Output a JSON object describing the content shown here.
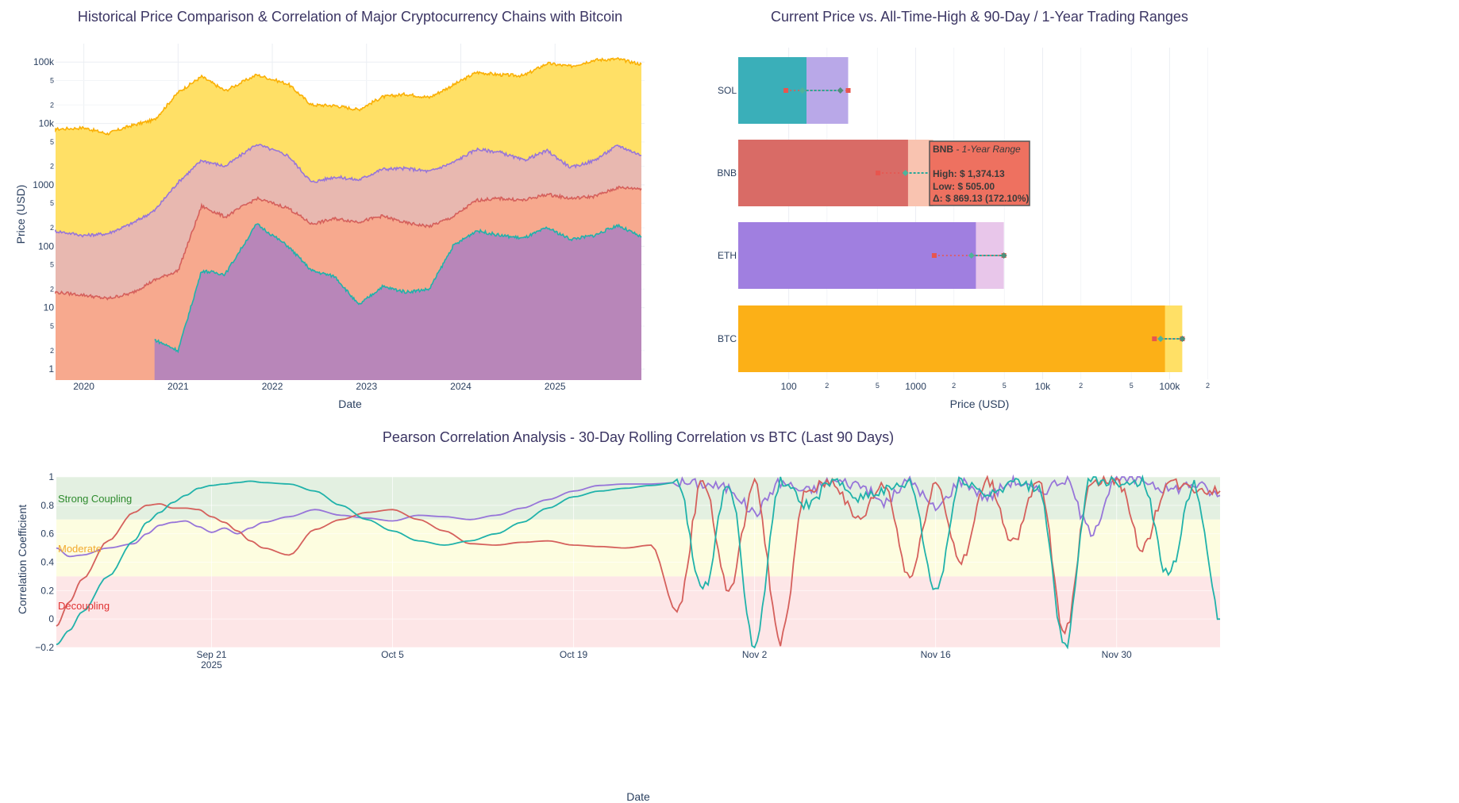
{
  "chart_data": [
    {
      "type": "area",
      "title": "Historical Price Comparison & Correlation of Major Cryptocurrency Chains with Bitcoin",
      "xlabel": "Date",
      "ylabel": "Price (USD)",
      "yscale": "log",
      "x_ticks": [
        "2020",
        "2021",
        "2022",
        "2023",
        "2024",
        "2025"
      ],
      "y_ticks_major": [
        "1",
        "10",
        "100",
        "1000",
        "10k",
        "100k"
      ],
      "y_ticks_minor": [
        "2",
        "5"
      ],
      "stacked": false,
      "dates": [
        "2019-09",
        "2020-01",
        "2020-04",
        "2020-07",
        "2020-10",
        "2021-01",
        "2021-04",
        "2021-07",
        "2021-11",
        "2022-03",
        "2022-06",
        "2022-09",
        "2022-12",
        "2023-03",
        "2023-06",
        "2023-09",
        "2023-12",
        "2024-03",
        "2024-06",
        "2024-09",
        "2024-12",
        "2025-03",
        "2025-06",
        "2025-09",
        "2025-12"
      ],
      "series": [
        {
          "name": "BTC",
          "color": "#fab005",
          "fill": "#ffe066",
          "values": [
            8000,
            8500,
            6800,
            9200,
            11500,
            32000,
            58000,
            34000,
            62000,
            44000,
            20000,
            19500,
            16800,
            27000,
            30000,
            26500,
            42000,
            68000,
            62000,
            60000,
            95000,
            85000,
            108000,
            112000,
            92000
          ]
        },
        {
          "name": "ETH",
          "color": "#9775d9",
          "fill": "#e8b8b0",
          "values": [
            180,
            150,
            160,
            230,
            380,
            1100,
            2500,
            2000,
            4600,
            3000,
            1100,
            1350,
            1200,
            1800,
            1850,
            1650,
            2300,
            3800,
            3400,
            2500,
            3600,
            1900,
            2500,
            4400,
            3000
          ]
        },
        {
          "name": "BNB",
          "color": "#d5605c",
          "fill": "#f7a98e",
          "values": [
            18,
            16,
            14,
            17,
            28,
            40,
            450,
            300,
            600,
            420,
            230,
            280,
            250,
            310,
            240,
            210,
            300,
            560,
            600,
            560,
            700,
            600,
            650,
            900,
            870
          ]
        },
        {
          "name": "SOL",
          "color": "#20b2aa",
          "fill": "#b886b9",
          "values": [
            null,
            null,
            null,
            null,
            3,
            2,
            40,
            35,
            230,
            100,
            40,
            32,
            11,
            22,
            18,
            20,
            100,
            180,
            150,
            135,
            200,
            130,
            150,
            220,
            140
          ]
        }
      ]
    },
    {
      "type": "bar",
      "title": "Current Price vs. All-Time-High & 90-Day / 1-Year Trading Ranges",
      "xlabel": "Price (USD)",
      "xscale": "log",
      "x_ticks_major": [
        "100",
        "1000",
        "10k",
        "100k"
      ],
      "x_ticks_minor": [
        "2",
        "5"
      ],
      "categories": [
        "SOL",
        "BNB",
        "ETH",
        "BTC"
      ],
      "current_price": [
        138,
        870,
        2980,
        92000
      ],
      "all_time_high": [
        294,
        1374,
        4950,
        126000
      ],
      "bar_colors": [
        "#3aafb9",
        "#d96b66",
        "#a07fe0",
        "#fcb017"
      ],
      "ath_colors": [
        "#b9a8e8",
        "#f9c3b0",
        "#e8c6ea",
        "#ffe066"
      ],
      "one_year_range": {
        "low": [
          95,
          505,
          1400,
          76000
        ],
        "high": [
          294,
          1374,
          4950,
          126000
        ]
      },
      "ninety_day_range": {
        "low": [
          128,
          830,
          2750,
          85000
        ],
        "high": [
          255,
          1374,
          4950,
          126000
        ]
      },
      "tooltip": {
        "title_bold": "BNB",
        "title_rest": " - 1-Year Range",
        "high_label": "High",
        "high_value": ": $ 1,374.13",
        "low_label": "Low",
        "low_value": ": $ 505.00",
        "delta_label": "Δ",
        "delta_value": ": $ 869.13 (172.10%)"
      }
    },
    {
      "type": "line",
      "title": "Pearson Correlation Analysis - 30-Day Rolling Correlation vs BTC (Last 90 Days)",
      "xlabel": "Date",
      "ylabel": "Correlation Coefficient",
      "ylim": [
        -0.2,
        1
      ],
      "x_start": "2025-09-09",
      "x_end": "2025-12-08",
      "x_ticks": [
        {
          "label": "Sep 21",
          "sub": "2025",
          "day": 12
        },
        {
          "label": "Oct 5",
          "sub": "",
          "day": 26
        },
        {
          "label": "Oct 19",
          "sub": "",
          "day": 40
        },
        {
          "label": "Nov 2",
          "sub": "",
          "day": 54
        },
        {
          "label": "Nov 16",
          "sub": "",
          "day": 68
        },
        {
          "label": "Nov 30",
          "sub": "",
          "day": 82
        }
      ],
      "y_ticks": [
        "−0.2",
        "0",
        "0.2",
        "0.4",
        "0.6",
        "0.8",
        "1"
      ],
      "bands": [
        {
          "label": "Strong Coupling",
          "from": 0.7,
          "to": 1.0,
          "fill": "#e3f0e1",
          "text_color": "#2e8b2e"
        },
        {
          "label": "Moderate",
          "from": 0.3,
          "to": 0.7,
          "fill": "#fdfde0",
          "text_color": "#f2a92c"
        },
        {
          "label": "Decoupling",
          "from": -0.2,
          "to": 0.3,
          "fill": "#fde6e7",
          "text_color": "#e03131"
        }
      ],
      "series": [
        {
          "name": "ETH",
          "color": "#9775d9",
          "days": [
            0,
            1,
            2,
            4,
            6,
            7,
            8,
            9,
            10,
            11,
            12,
            13,
            14,
            15,
            16,
            18,
            20,
            22,
            24,
            26,
            28,
            30,
            32,
            34,
            36,
            38,
            40,
            42,
            44,
            46,
            48,
            50,
            52,
            54,
            56,
            58,
            60,
            62,
            64,
            66,
            68,
            70,
            72,
            74,
            76,
            78,
            80,
            82,
            84,
            86,
            88,
            90
          ],
          "values": [
            0.5,
            0.44,
            0.45,
            0.5,
            0.53,
            0.6,
            0.66,
            0.68,
            0.69,
            0.65,
            0.61,
            0.64,
            0.6,
            0.64,
            0.68,
            0.72,
            0.77,
            0.73,
            0.71,
            0.69,
            0.73,
            0.72,
            0.7,
            0.73,
            0.78,
            0.84,
            0.9,
            0.94,
            0.95,
            0.95,
            0.96,
            0.95,
            0.92,
            0.75,
            0.96,
            0.9,
            0.97,
            0.95,
            0.82,
            0.97,
            0.78,
            0.97,
            0.86,
            0.97,
            0.9,
            0.98,
            0.62,
            0.98,
            0.98,
            0.91,
            0.95,
            0.87
          ]
        },
        {
          "name": "BNB",
          "color": "#d5605c",
          "days": [
            0,
            1,
            2,
            4,
            6,
            7,
            8,
            9,
            10,
            11,
            12,
            13,
            14,
            15,
            16,
            18,
            20,
            22,
            24,
            26,
            28,
            30,
            32,
            34,
            36,
            38,
            40,
            42,
            44,
            46,
            48,
            50,
            52,
            54,
            56,
            58,
            60,
            62,
            64,
            66,
            68,
            70,
            72,
            74,
            76,
            78,
            80,
            82,
            84,
            86,
            88,
            90
          ],
          "values": [
            -0.05,
            0.12,
            0.28,
            0.55,
            0.75,
            0.8,
            0.81,
            0.78,
            0.78,
            0.77,
            0.72,
            0.68,
            0.62,
            0.55,
            0.5,
            0.45,
            0.63,
            0.7,
            0.75,
            0.77,
            0.7,
            0.62,
            0.53,
            0.52,
            0.54,
            0.55,
            0.52,
            0.51,
            0.5,
            0.52,
            0.05,
            0.98,
            0.2,
            0.95,
            -0.15,
            0.9,
            0.97,
            0.7,
            0.95,
            0.3,
            0.96,
            0.4,
            0.98,
            0.55,
            0.96,
            -0.1,
            0.97,
            0.98,
            0.5,
            0.96,
            0.92,
            0.9
          ]
        },
        {
          "name": "SOL",
          "color": "#20b2aa",
          "days": [
            0,
            1,
            2,
            4,
            6,
            7,
            8,
            9,
            10,
            11,
            12,
            13,
            14,
            15,
            16,
            18,
            20,
            22,
            24,
            26,
            28,
            30,
            32,
            34,
            36,
            38,
            40,
            42,
            44,
            46,
            48,
            50,
            52,
            54,
            56,
            58,
            60,
            62,
            64,
            66,
            68,
            70,
            72,
            74,
            76,
            78,
            80,
            82,
            84,
            86,
            88,
            90
          ],
          "values": [
            -0.18,
            -0.08,
            0.05,
            0.3,
            0.55,
            0.68,
            0.75,
            0.82,
            0.87,
            0.92,
            0.94,
            0.95,
            0.96,
            0.97,
            0.96,
            0.95,
            0.9,
            0.8,
            0.7,
            0.62,
            0.55,
            0.52,
            0.55,
            0.6,
            0.68,
            0.78,
            0.86,
            0.9,
            0.92,
            0.94,
            0.96,
            0.2,
            0.96,
            -0.2,
            0.97,
            0.8,
            0.96,
            0.86,
            0.9,
            0.95,
            0.2,
            0.98,
            0.88,
            0.96,
            0.92,
            -0.2,
            0.98,
            0.97,
            0.96,
            0.3,
            0.94,
            0.0
          ]
        }
      ]
    }
  ]
}
